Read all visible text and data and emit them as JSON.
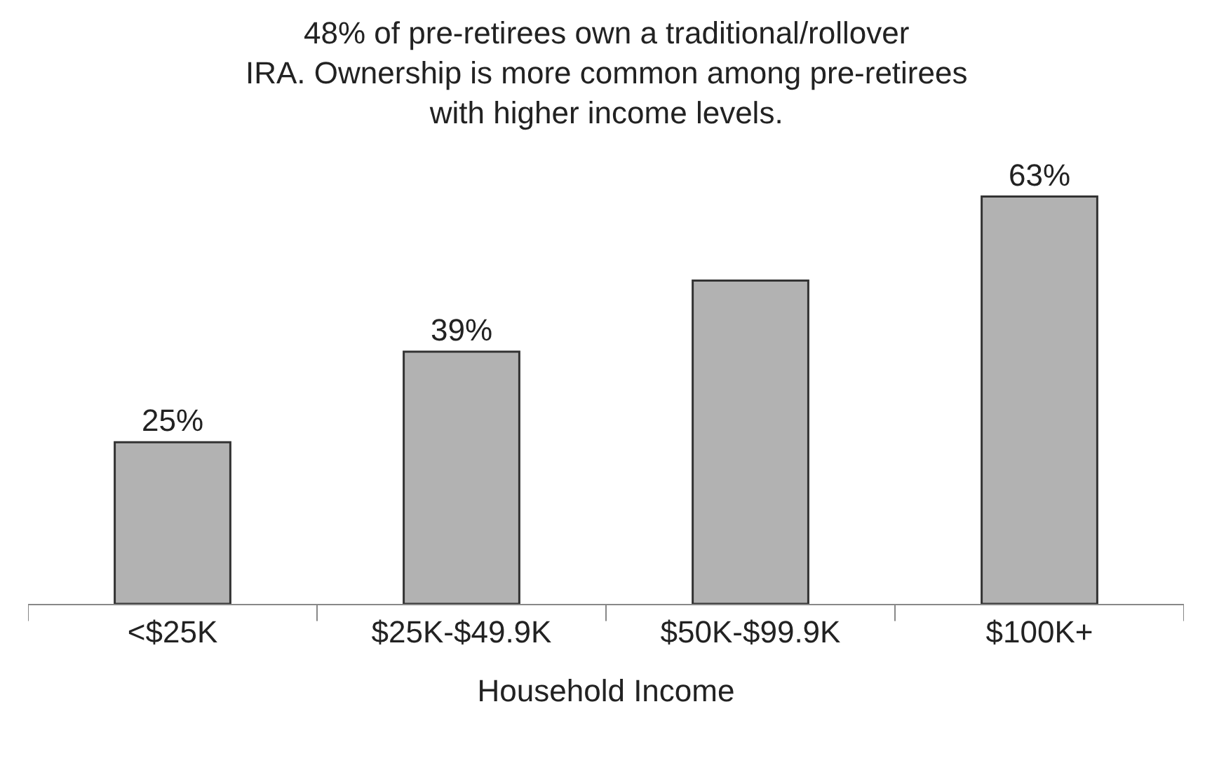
{
  "chart_data": {
    "type": "bar",
    "xlabel": "Household Income",
    "categories": [
      "<$25K",
      "$25K-$49.9K",
      "$50K-$99.9K",
      "$100K+"
    ],
    "values": [
      25,
      39,
      50,
      63
    ],
    "value_labels": [
      "25%",
      "39%",
      null,
      "63%"
    ],
    "color": "#b2b2b2",
    "tick_labels": "x",
    "annotations": [
      "48% of pre-retirees own a traditional/rollover IRA. Ownership is more common among pre-retirees with higher income levels."
    ]
  }
}
